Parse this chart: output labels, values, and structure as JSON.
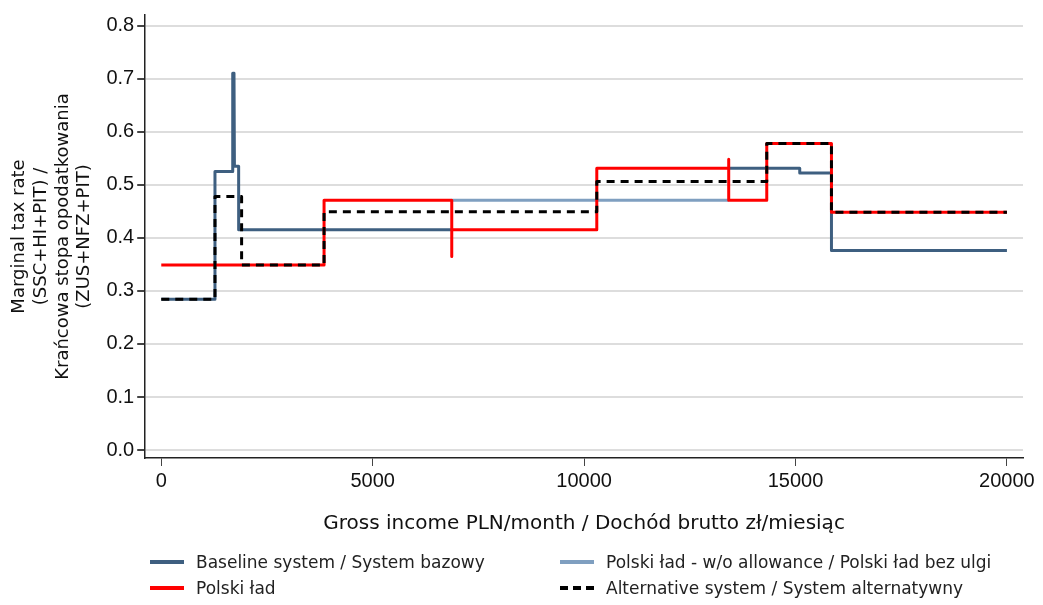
{
  "chart_data": {
    "type": "line",
    "xlabel": "Gross income PLN/month / Dochód brutto zł/miesiąc",
    "ylabel": "Marginal tax rate\n(SSC+HI+PIT) /\nKrańcowa stopa opodatkowania\n(ZUS+NFZ+PIT)",
    "xlim": [
      -380,
      20380
    ],
    "xticks": [
      0,
      5000,
      10000,
      15000,
      20000
    ],
    "ylim": [
      -0.015,
      0.82
    ],
    "yticks": [
      {
        "value": 0,
        "label": "0.0"
      },
      0.1,
      0.2,
      0.3,
      0.4,
      0.5,
      0.6,
      0.7,
      0.8
    ],
    "grid": "y",
    "legend": "bottom",
    "marker": "none",
    "series": [
      {
        "name": "Baseline system / System bazowy",
        "color": "#3e5f80",
        "line_style": "solid",
        "x": [
          0,
          1270,
          1270,
          1680,
          1690,
          1720,
          1730,
          1830,
          1830,
          6870,
          10000,
          13420,
          15100,
          15100,
          15850,
          15850,
          20000
        ],
        "values": [
          0.284,
          0.284,
          0.525,
          0.525,
          0.71,
          0.71,
          0.535,
          0.535,
          0.415,
          0.415,
          null,
          0.531,
          0.531,
          0.522,
          0.522,
          0.376,
          0.376
        ]
      },
      {
        "name": "Polski ład - w/o allowance / Polski ład bez ulgi",
        "color": "#7f9fc0",
        "line_style": "solid",
        "x": [
          6870,
          13420
        ],
        "values": [
          0.471,
          0.471
        ]
      },
      {
        "name": "Polski ład",
        "color": "#ff0000",
        "line_style": "solid",
        "x": [
          0,
          3850,
          3850,
          6870,
          6870,
          6870,
          10300,
          10300,
          13420,
          13420,
          13420,
          14320,
          14320,
          15850,
          15850,
          20000
        ],
        "values": [
          0.349,
          0.349,
          0.471,
          0.471,
          0.365,
          0.415,
          0.415,
          0.531,
          0.531,
          0.548,
          0.471,
          0.471,
          0.578,
          0.578,
          0.448,
          0.448
        ]
      },
      {
        "name": "Alternative system / System alternatywny",
        "color": "#000000",
        "line_style": "dashed",
        "x": [
          0,
          1270,
          1270,
          1900,
          1900,
          3850,
          3850,
          10300,
          10300,
          14320,
          14320,
          15850,
          15850,
          20000
        ],
        "values": [
          0.284,
          0.284,
          0.478,
          0.478,
          0.349,
          0.349,
          0.449,
          0.449,
          0.506,
          0.506,
          0.578,
          0.578,
          0.448,
          0.448
        ]
      }
    ]
  }
}
